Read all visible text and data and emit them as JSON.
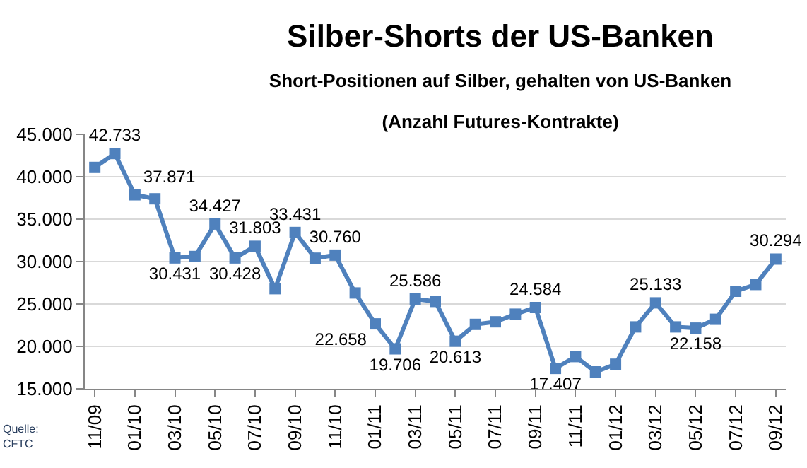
{
  "chart_data": {
    "type": "line",
    "title": "Silber-Shorts der US-Banken",
    "subtitle": "Short-Positionen auf Silber, gehalten von US-Banken\n(Anzahl Futures-Kontrakte)",
    "categories": [
      "11/09",
      null,
      "01/10",
      null,
      "03/10",
      null,
      "05/10",
      null,
      "07/10",
      null,
      "09/10",
      null,
      "11/10",
      null,
      "01/11",
      null,
      "03/11",
      null,
      "05/11",
      null,
      "07/11",
      null,
      "09/11",
      null,
      "11/11",
      null,
      "01/12",
      null,
      "03/12",
      null,
      "05/12",
      null,
      "07/12",
      null,
      "09/12"
    ],
    "series": [
      {
        "color": "#4f81bd",
        "values": [
          41100,
          42733,
          37871,
          37400,
          30431,
          30600,
          34427,
          30428,
          31803,
          26800,
          33431,
          30400,
          30760,
          26300,
          22658,
          19706,
          25586,
          25300,
          20613,
          22600,
          22900,
          23800,
          24584,
          17407,
          18800,
          17000,
          17900,
          22300,
          25133,
          22300,
          22158,
          23200,
          26500,
          27300,
          30294
        ],
        "value_labels": [
          null,
          "42.733",
          "37.871",
          null,
          "30.431",
          null,
          "34.427",
          "30.428",
          "31.803",
          null,
          "33.431",
          null,
          "30.760",
          null,
          "22.658",
          "19.706",
          "25.586",
          null,
          "20.613",
          null,
          null,
          null,
          "24.584",
          "17.407",
          null,
          null,
          null,
          null,
          "25.133",
          null,
          "22.158",
          null,
          null,
          null,
          "30.294"
        ]
      }
    ],
    "ylim": [
      15000,
      45000
    ],
    "yticks": [
      {
        "value": 15000,
        "label": "15.000"
      },
      {
        "value": 20000,
        "label": "20.000"
      },
      {
        "value": 25000,
        "label": "25.000"
      },
      {
        "value": 30000,
        "label": "30.000"
      },
      {
        "value": 35000,
        "label": "35.000"
      },
      {
        "value": 40000,
        "label": "40.000"
      },
      {
        "value": 45000,
        "label": "45.000"
      }
    ],
    "grid": "y",
    "marker": "square",
    "line_style": "solid",
    "annotations": [
      "Quelle:\nCFTC"
    ]
  }
}
